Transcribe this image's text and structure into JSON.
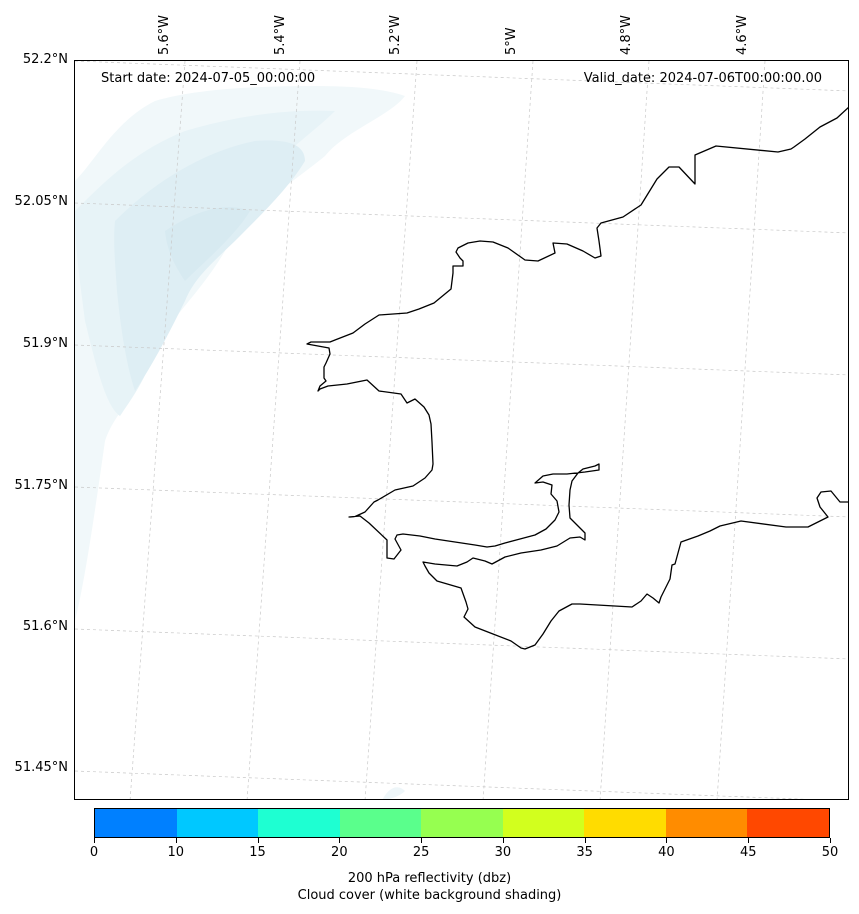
{
  "map": {
    "start_date_label": "Start date: 2024-07-05_00:00:00",
    "valid_date_label": "Valid_date: 2024-07-06T00:00:00.00",
    "lat_labels": [
      "52.2°N",
      "52.05°N",
      "51.9°N",
      "51.75°N",
      "51.6°N",
      "51.45°N"
    ],
    "lon_labels": [
      "5.6°W",
      "5.4°W",
      "5.2°W",
      "5°W",
      "4.8°W",
      "4.6°W"
    ],
    "gridlines": true,
    "coastline_color": "#000000",
    "cloud_shading_color": "#e3f0f5"
  },
  "colorbar": {
    "ticks": [
      "0",
      "10",
      "15",
      "20",
      "25",
      "30",
      "35",
      "40",
      "45",
      "50"
    ],
    "colors": [
      "#0080ff",
      "#00c8ff",
      "#1effd2",
      "#5aff8c",
      "#96ff50",
      "#d2ff1e",
      "#ffdc00",
      "#ff8c00",
      "#ff4800"
    ],
    "caption_line1": "200 hPa reflectivity (dbz)",
    "caption_line2": "Cloud cover (white background shading)"
  }
}
